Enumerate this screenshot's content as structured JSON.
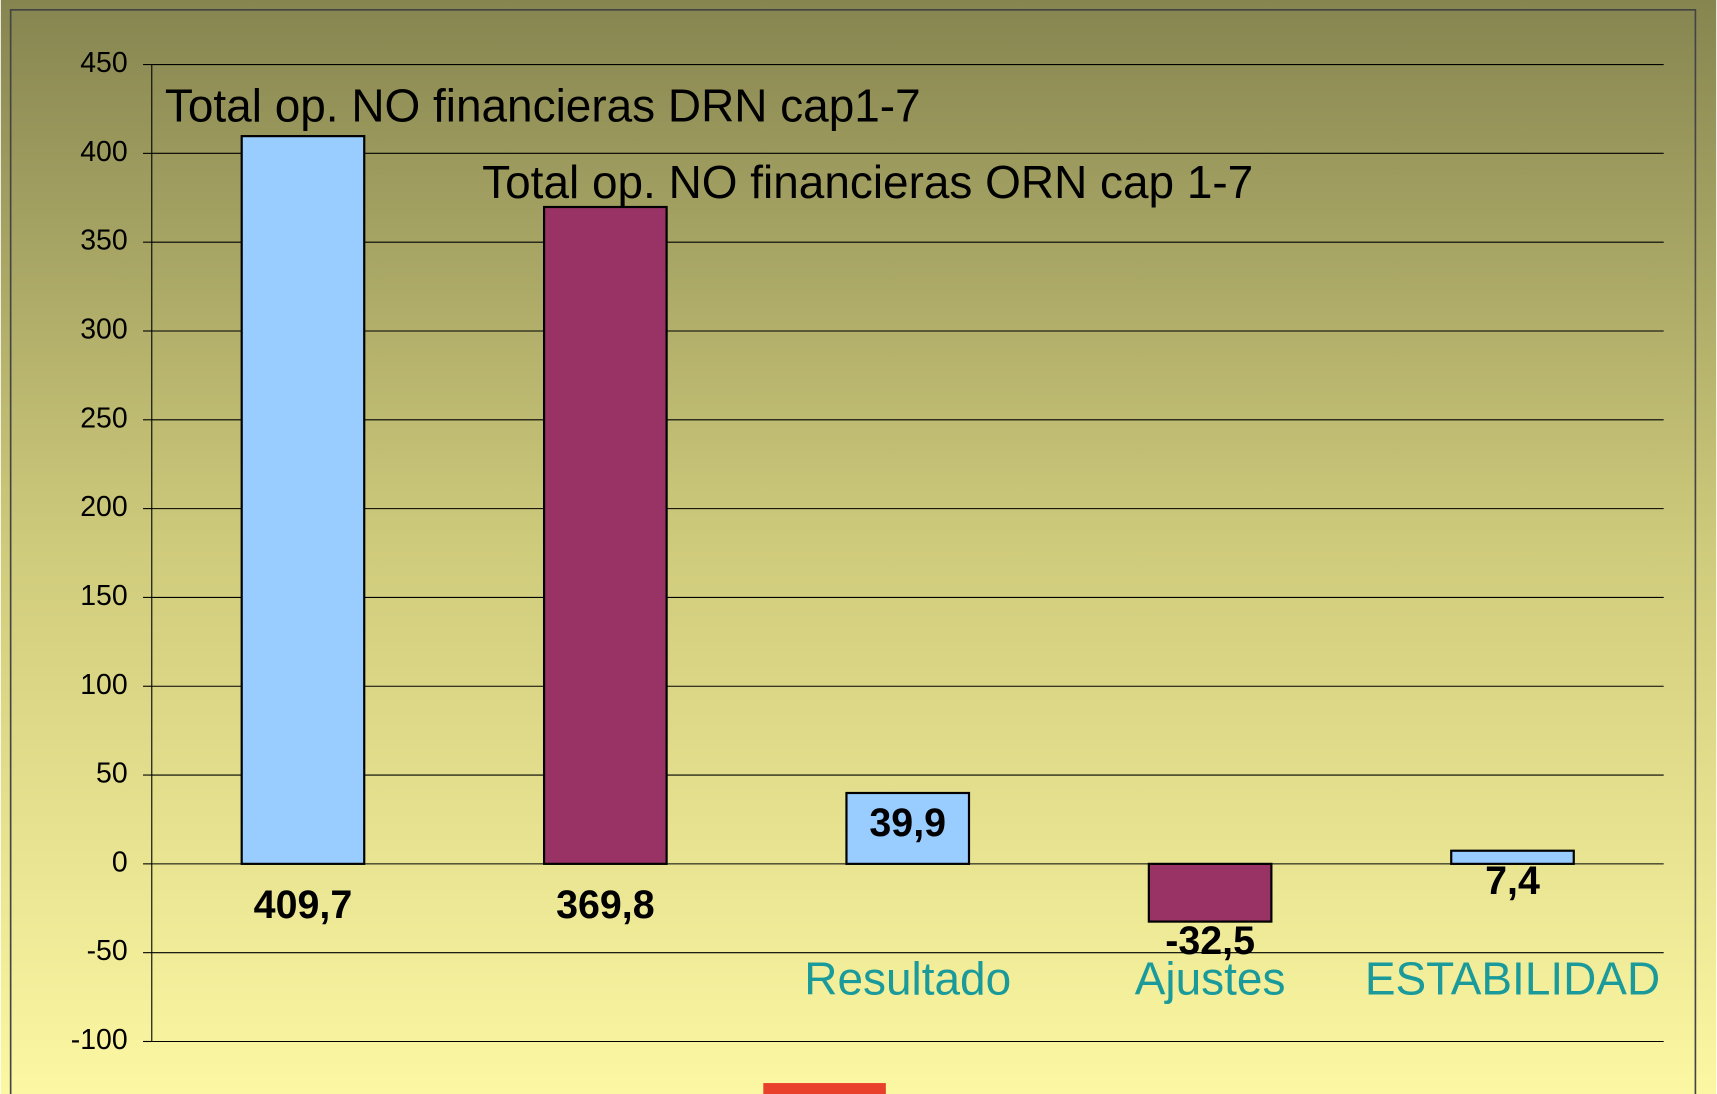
{
  "chart_data": {
    "type": "bar",
    "categories": [
      "Total op. NO financieras DRN cap1-7",
      "Total op. NO financieras ORN cap 1-7",
      "Resultado",
      "Ajustes",
      "ESTABILIDAD"
    ],
    "values": [
      409.7,
      369.8,
      39.9,
      -32.5,
      7.4
    ],
    "value_labels": [
      "409,7",
      "369,8",
      "39,9",
      "-32,5",
      "7,4"
    ],
    "colors": [
      "#99ccff",
      "#993366",
      "#99ccff",
      "#993366",
      "#99ccff"
    ],
    "ylim": [
      -100,
      450
    ],
    "yticks": [
      -100,
      -50,
      0,
      50,
      100,
      150,
      200,
      250,
      300,
      350,
      400,
      450
    ],
    "grid": true
  }
}
